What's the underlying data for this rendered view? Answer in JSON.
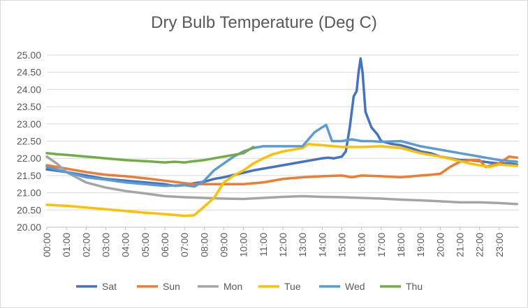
{
  "chart_data": {
    "type": "line",
    "title": "Dry Bulb Temperature (Deg C)",
    "xlabel": "",
    "ylabel": "",
    "ylim": [
      20.0,
      25.0
    ],
    "y_ticks": [
      "20.00",
      "20.50",
      "21.00",
      "21.50",
      "22.00",
      "22.50",
      "23.00",
      "23.50",
      "24.00",
      "24.50",
      "25.00"
    ],
    "x_ticks": [
      "00:00",
      "01:00",
      "02:00",
      "03:00",
      "04:00",
      "05:00",
      "06:00",
      "07:00",
      "08:00",
      "09:00",
      "10:00",
      "11:00",
      "12:00",
      "13:00",
      "14:00",
      "15:00",
      "16:00",
      "17:00",
      "18:00",
      "19:00",
      "20:00",
      "21:00",
      "22:00",
      "23:00"
    ],
    "xlim_hours": [
      0,
      24
    ],
    "grid": "horizontal",
    "legend_position": "bottom",
    "series": [
      {
        "name": "Sat",
        "color": "#4472c4",
        "x": [
          0,
          1,
          2,
          3,
          4,
          5,
          6,
          6.5,
          7,
          7.5,
          8,
          8.5,
          9,
          9.5,
          10,
          10.5,
          11,
          11.5,
          12,
          12.5,
          13,
          13.5,
          14,
          14.3,
          14.6,
          15,
          15.2,
          15.4,
          15.6,
          15.75,
          15.85,
          15.95,
          16.05,
          16.2,
          16.5,
          16.8,
          17,
          17.5,
          18,
          18.5,
          19,
          19.5,
          20,
          20.5,
          21,
          21.5,
          22,
          22.5,
          23,
          23.5,
          23.9
        ],
        "y": [
          21.68,
          21.6,
          21.5,
          21.4,
          21.35,
          21.3,
          21.25,
          21.2,
          21.22,
          21.28,
          21.32,
          21.4,
          21.45,
          21.52,
          21.58,
          21.65,
          21.7,
          21.75,
          21.8,
          21.85,
          21.9,
          21.95,
          22.0,
          22.02,
          22.0,
          22.05,
          22.2,
          22.9,
          23.8,
          23.95,
          24.5,
          24.9,
          24.5,
          23.35,
          22.9,
          22.7,
          22.5,
          22.42,
          22.38,
          22.3,
          22.2,
          22.15,
          22.05,
          22.0,
          21.95,
          21.95,
          21.92,
          21.88,
          21.85,
          21.85,
          21.82
        ]
      },
      {
        "name": "Sun",
        "color": "#ed7d31",
        "x": [
          0,
          1,
          2,
          3,
          4,
          5,
          6,
          7,
          7.5,
          8,
          9,
          10,
          11,
          12,
          13,
          14,
          15,
          15.5,
          16,
          17,
          18,
          19,
          19.5,
          20,
          20.5,
          21,
          21.5,
          22,
          22.3,
          22.6,
          23,
          23.5,
          23.9
        ],
        "y": [
          21.8,
          21.7,
          21.6,
          21.52,
          21.48,
          21.42,
          21.35,
          21.28,
          21.25,
          21.25,
          21.25,
          21.25,
          21.3,
          21.4,
          21.45,
          21.48,
          21.5,
          21.45,
          21.5,
          21.48,
          21.45,
          21.5,
          21.52,
          21.55,
          21.75,
          21.9,
          21.95,
          21.95,
          21.75,
          21.8,
          21.85,
          22.05,
          22.02
        ]
      },
      {
        "name": "Mon",
        "color": "#a5a5a5",
        "x": [
          0,
          0.5,
          1,
          1.5,
          2,
          3,
          4,
          5,
          6,
          7,
          8,
          9,
          10,
          11,
          12,
          13,
          14,
          15,
          16,
          17,
          18,
          19,
          20,
          21,
          22,
          23,
          23.9
        ],
        "y": [
          22.05,
          21.85,
          21.6,
          21.45,
          21.3,
          21.15,
          21.05,
          20.98,
          20.9,
          20.87,
          20.85,
          20.83,
          20.82,
          20.85,
          20.88,
          20.9,
          20.88,
          20.87,
          20.85,
          20.83,
          20.8,
          20.78,
          20.75,
          20.72,
          20.72,
          20.7,
          20.67
        ]
      },
      {
        "name": "Tue",
        "color": "#ffc000",
        "x": [
          0,
          1,
          2,
          3,
          4,
          5,
          6,
          7,
          7.5,
          8,
          8.5,
          9,
          9.5,
          10,
          10.5,
          11,
          11.5,
          12,
          12.5,
          13,
          13.3,
          13.5,
          14,
          15,
          16,
          17,
          18,
          19,
          20,
          21,
          21.5,
          22,
          22.5,
          23,
          23.5,
          23.9
        ],
        "y": [
          20.65,
          20.62,
          20.57,
          20.52,
          20.47,
          20.42,
          20.38,
          20.33,
          20.35,
          20.6,
          20.85,
          21.3,
          21.5,
          21.65,
          21.85,
          22.0,
          22.12,
          22.2,
          22.25,
          22.3,
          22.42,
          22.4,
          22.38,
          22.33,
          22.33,
          22.35,
          22.3,
          22.15,
          22.05,
          21.92,
          21.85,
          21.8,
          21.75,
          21.82,
          21.8,
          21.78
        ]
      },
      {
        "name": "Wed",
        "color": "#5b9bd5",
        "x": [
          0,
          1,
          2,
          3,
          4,
          5,
          6,
          7,
          7.5,
          8,
          8.5,
          9,
          9.5,
          10,
          10.5,
          11,
          11.5,
          12,
          12.5,
          13,
          13.3,
          13.6,
          14,
          14.2,
          14.5,
          15,
          15.5,
          16,
          16.5,
          17,
          18,
          19,
          20,
          21,
          22,
          23,
          23.9
        ],
        "y": [
          21.75,
          21.6,
          21.45,
          21.38,
          21.3,
          21.25,
          21.2,
          21.22,
          21.18,
          21.35,
          21.65,
          21.85,
          22.05,
          22.2,
          22.3,
          22.35,
          22.35,
          22.35,
          22.35,
          22.35,
          22.55,
          22.75,
          22.9,
          22.97,
          22.5,
          22.5,
          22.55,
          22.5,
          22.5,
          22.48,
          22.5,
          22.35,
          22.25,
          22.15,
          22.05,
          21.95,
          21.9
        ]
      },
      {
        "name": "Thu",
        "color": "#70ad47",
        "x": [
          0,
          0.5,
          1,
          2,
          3,
          4,
          5,
          6,
          6.5,
          7,
          7.5,
          8,
          8.5,
          9,
          9.5,
          10,
          10.5
        ],
        "y": [
          22.15,
          22.12,
          22.1,
          22.05,
          22.0,
          21.95,
          21.92,
          21.88,
          21.9,
          21.88,
          21.92,
          21.95,
          22.0,
          22.05,
          22.1,
          22.15,
          22.33
        ]
      }
    ]
  }
}
